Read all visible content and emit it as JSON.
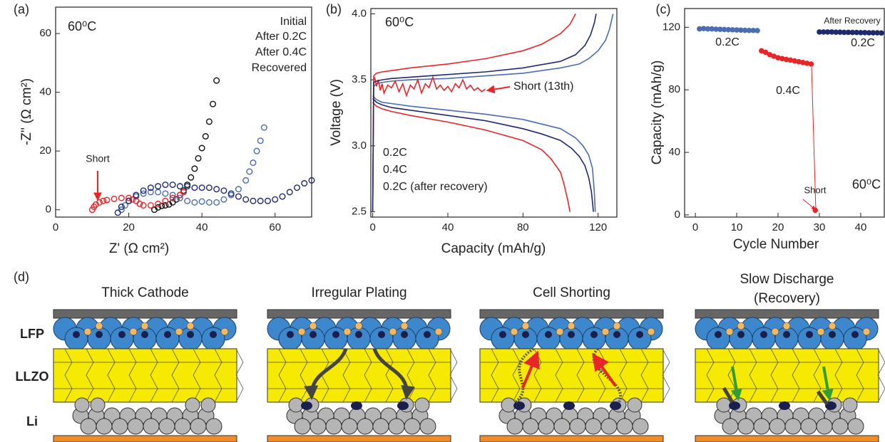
{
  "chart_data": [
    {
      "type": "scatter",
      "panel_label": "(a)",
      "x_label": "Z' (Ω cm²)",
      "y_label": "-Z'' (Ω cm²)",
      "annotations": [
        "60⁰C",
        "Short"
      ],
      "marker": "open-circle",
      "xlim": [
        0,
        70
      ],
      "ylim": [
        -2.5,
        69
      ],
      "xticks": [
        0,
        20,
        40,
        60
      ],
      "yticks": [
        0,
        20,
        40,
        60
      ],
      "series": [
        {
          "name": "Initial",
          "color": "#111111",
          "x": [
            27,
            28,
            29,
            30,
            31,
            32,
            33,
            34,
            35,
            36,
            37,
            38,
            39,
            40,
            41,
            42,
            43,
            44
          ],
          "values": [
            0,
            0.8,
            1.3,
            1.5,
            1.8,
            2.5,
            3.5,
            5,
            6.5,
            8.5,
            11,
            14,
            17.5,
            21,
            25,
            30,
            36,
            44
          ]
        },
        {
          "name": "After 0.2C",
          "color": "#4a6db3",
          "x": [
            18,
            19,
            20,
            22,
            24,
            26,
            28,
            30,
            32,
            34,
            36,
            38,
            40,
            42,
            44,
            46,
            48,
            50,
            52,
            53,
            54,
            55,
            56,
            57
          ],
          "values": [
            0,
            1.5,
            3,
            4.5,
            5.5,
            6,
            6,
            5.5,
            5,
            4,
            3,
            2.5,
            2.8,
            2.5,
            2.5,
            3.5,
            5,
            7,
            10,
            13,
            16,
            20,
            23.5,
            28
          ]
        },
        {
          "name": "After 0.4C",
          "color": "#e8262a",
          "x": [
            10,
            10.5,
            11,
            12,
            13,
            14,
            16,
            18,
            20,
            21,
            22,
            23,
            24,
            26,
            28,
            30,
            32,
            34,
            35
          ],
          "values": [
            0,
            1,
            1.8,
            2.5,
            3,
            3.3,
            3.7,
            4,
            4,
            3.5,
            3,
            2,
            1.5,
            1.5,
            2,
            3,
            4,
            5,
            6
          ]
        },
        {
          "name": "Recovered",
          "color": "#1f2a6e",
          "x": [
            17,
            18,
            20,
            22,
            24,
            26,
            28,
            30,
            32,
            34,
            36,
            38,
            40,
            42,
            44,
            46,
            48,
            50,
            52,
            54,
            56,
            58,
            60,
            62,
            64,
            66,
            68,
            70
          ],
          "values": [
            -1,
            1,
            3,
            5,
            6.5,
            7.5,
            8,
            8.5,
            8.5,
            8,
            8,
            7.5,
            7.5,
            7.5,
            7,
            6.5,
            5.5,
            4.5,
            3.5,
            3,
            3,
            3,
            3.5,
            4.5,
            6,
            7.5,
            9,
            10
          ]
        }
      ]
    },
    {
      "type": "line",
      "panel_label": "(b)",
      "x_label": "Capacity (mAh/g)",
      "y_label": "Voltage (V)",
      "annotations": [
        "60⁰C",
        "Short (13th)"
      ],
      "xlim": [
        -1,
        130
      ],
      "ylim": [
        2.46,
        4.04
      ],
      "xticks": [
        0,
        40,
        80,
        120
      ],
      "yticks": [
        2.5,
        {
          "value": 3,
          "label": "3.0"
        },
        3.5,
        {
          "value": 4,
          "label": "4.0"
        }
      ],
      "series": [
        {
          "name": "0.2C",
          "color": "#4a6db3",
          "x": [
            0,
            0.5,
            2,
            5,
            10,
            20,
            40,
            60,
            80,
            100,
            110,
            115,
            120,
            124,
            126,
            128,
            null,
            0,
            2,
            5,
            10,
            20,
            40,
            60,
            80,
            100,
            108,
            112,
            115,
            117,
            118,
            118.5
          ],
          "values": [
            2.5,
            3.45,
            3.47,
            3.48,
            3.49,
            3.5,
            3.51,
            3.53,
            3.55,
            3.59,
            3.62,
            3.66,
            3.72,
            3.8,
            3.88,
            4.0,
            null,
            3.38,
            3.35,
            3.33,
            3.32,
            3.3,
            3.27,
            3.24,
            3.2,
            3.13,
            3.06,
            3.0,
            2.93,
            2.83,
            2.65,
            2.5
          ]
        },
        {
          "name": "0.4C",
          "color": "#e8262a",
          "x": [
            0,
            0.5,
            2,
            5,
            10,
            20,
            40,
            60,
            80,
            90,
            100,
            105,
            108,
            null,
            0,
            2,
            5,
            10,
            20,
            40,
            60,
            80,
            90,
            95,
            100,
            102,
            104,
            105,
            null,
            1,
            2,
            3,
            4,
            5,
            6,
            8,
            10,
            12,
            14,
            16,
            18,
            20,
            22,
            24,
            26,
            28,
            30,
            32,
            34,
            36,
            38,
            40,
            42,
            44,
            46,
            48,
            50,
            52,
            54,
            56,
            58,
            60
          ],
          "values": [
            2.5,
            3.53,
            3.55,
            3.56,
            3.57,
            3.59,
            3.62,
            3.66,
            3.72,
            3.77,
            3.85,
            3.92,
            4.0,
            null,
            3.33,
            3.3,
            3.28,
            3.26,
            3.23,
            3.18,
            3.12,
            3.04,
            2.97,
            2.9,
            2.8,
            2.7,
            2.58,
            2.5,
            null,
            3.52,
            3.45,
            3.5,
            3.42,
            3.47,
            3.4,
            3.46,
            3.44,
            3.49,
            3.41,
            3.47,
            3.38,
            3.46,
            3.43,
            3.5,
            3.4,
            3.47,
            3.44,
            3.52,
            3.43,
            3.46,
            3.42,
            3.45,
            3.41,
            3.47,
            3.44,
            3.5,
            3.43,
            3.46,
            3.42,
            3.44,
            3.41,
            3.43
          ]
        },
        {
          "name": "0.2C (after recovery)",
          "color": "#1f2a6e",
          "x": [
            0,
            0.5,
            2,
            5,
            10,
            20,
            40,
            60,
            80,
            100,
            108,
            113,
            116,
            118,
            119,
            null,
            0,
            2,
            5,
            10,
            20,
            40,
            60,
            80,
            90,
            100,
            106,
            110,
            113,
            115,
            116.5,
            117.5
          ],
          "values": [
            2.5,
            3.48,
            3.49,
            3.5,
            3.51,
            3.52,
            3.54,
            3.56,
            3.59,
            3.64,
            3.69,
            3.76,
            3.84,
            3.93,
            4.0,
            null,
            3.36,
            3.33,
            3.31,
            3.29,
            3.27,
            3.23,
            3.19,
            3.13,
            3.09,
            3.04,
            2.98,
            2.92,
            2.85,
            2.76,
            2.65,
            2.5
          ]
        }
      ]
    },
    {
      "type": "scatter",
      "panel_label": "(c)",
      "x_label": "Cycle Number",
      "y_label": "Capacity (mAh/g)",
      "annotations": [
        "After Recovery",
        "Short",
        "60⁰C"
      ],
      "marker": "filled-circle",
      "xlim": [
        -2.6,
        45.7
      ],
      "ylim": [
        -1.4,
        132
      ],
      "xticks": [
        0,
        10,
        20,
        30,
        40
      ],
      "yticks": [
        0,
        40,
        80,
        120
      ],
      "series": [
        {
          "name": "0.2C",
          "color": "#4a6db3",
          "x": [
            1,
            2,
            3,
            4,
            5,
            6,
            7,
            8,
            9,
            10,
            11,
            12,
            13,
            14,
            15
          ],
          "values": [
            119,
            119.2,
            119,
            119,
            118.8,
            118.7,
            118.6,
            118.5,
            118.4,
            118.3,
            118.2,
            118.1,
            118,
            118,
            117.9
          ]
        },
        {
          "name": "0.4C",
          "color": "#e8262a",
          "x": [
            16,
            17,
            18,
            19,
            20,
            21,
            22,
            23,
            24,
            25,
            26,
            27,
            28,
            29
          ],
          "values": [
            105,
            104,
            102.5,
            101.5,
            100.5,
            100,
            99.5,
            99,
            98.5,
            98,
            97.5,
            97,
            96.5,
            3
          ]
        },
        {
          "name": "0.2C",
          "color": "#1f2a6e",
          "x": [
            30,
            31,
            32,
            33,
            34,
            35,
            36,
            37,
            38,
            39,
            40,
            41,
            42,
            43,
            44,
            45
          ],
          "values": [
            117,
            117,
            117,
            117,
            116.9,
            116.9,
            116.8,
            116.8,
            116.7,
            116.7,
            116.6,
            116.6,
            116.5,
            116.5,
            116.5,
            116.4
          ]
        }
      ]
    }
  ],
  "diagram": {
    "panel_label": "(d)",
    "row_labels": [
      "LFP",
      "LLZO",
      "Li"
    ],
    "column_titles": [
      [
        "Thick Cathode"
      ],
      [
        "Irregular Plating"
      ],
      [
        "Cell Shorting"
      ],
      [
        "Slow Discharge",
        "(Recovery)"
      ]
    ]
  }
}
